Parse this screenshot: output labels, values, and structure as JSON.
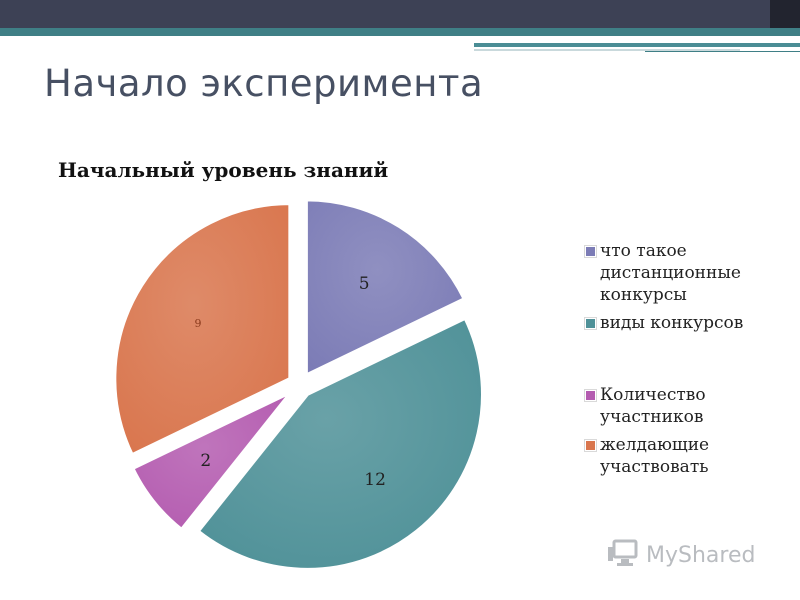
{
  "slide": {
    "title": "Начало эксперимента"
  },
  "logo": {
    "text": "MyShared"
  },
  "chart_data": {
    "type": "pie",
    "title": "Начальный уровень знаний",
    "legend_position": "right",
    "slices": [
      {
        "label": "что такое дистанционные конкурсы",
        "value": 5,
        "value_label": "5",
        "color": "#7c7cb6"
      },
      {
        "label": "виды конкурсов",
        "value": 12,
        "value_label": "12",
        "color": "#4f9198"
      },
      {
        "label": "Количество участников",
        "value": 2,
        "value_label": "2",
        "color": "#b45cb0"
      },
      {
        "label": "желдающие участвовать",
        "value": 9,
        "value_label": "9",
        "color": "#d9764e"
      }
    ]
  }
}
